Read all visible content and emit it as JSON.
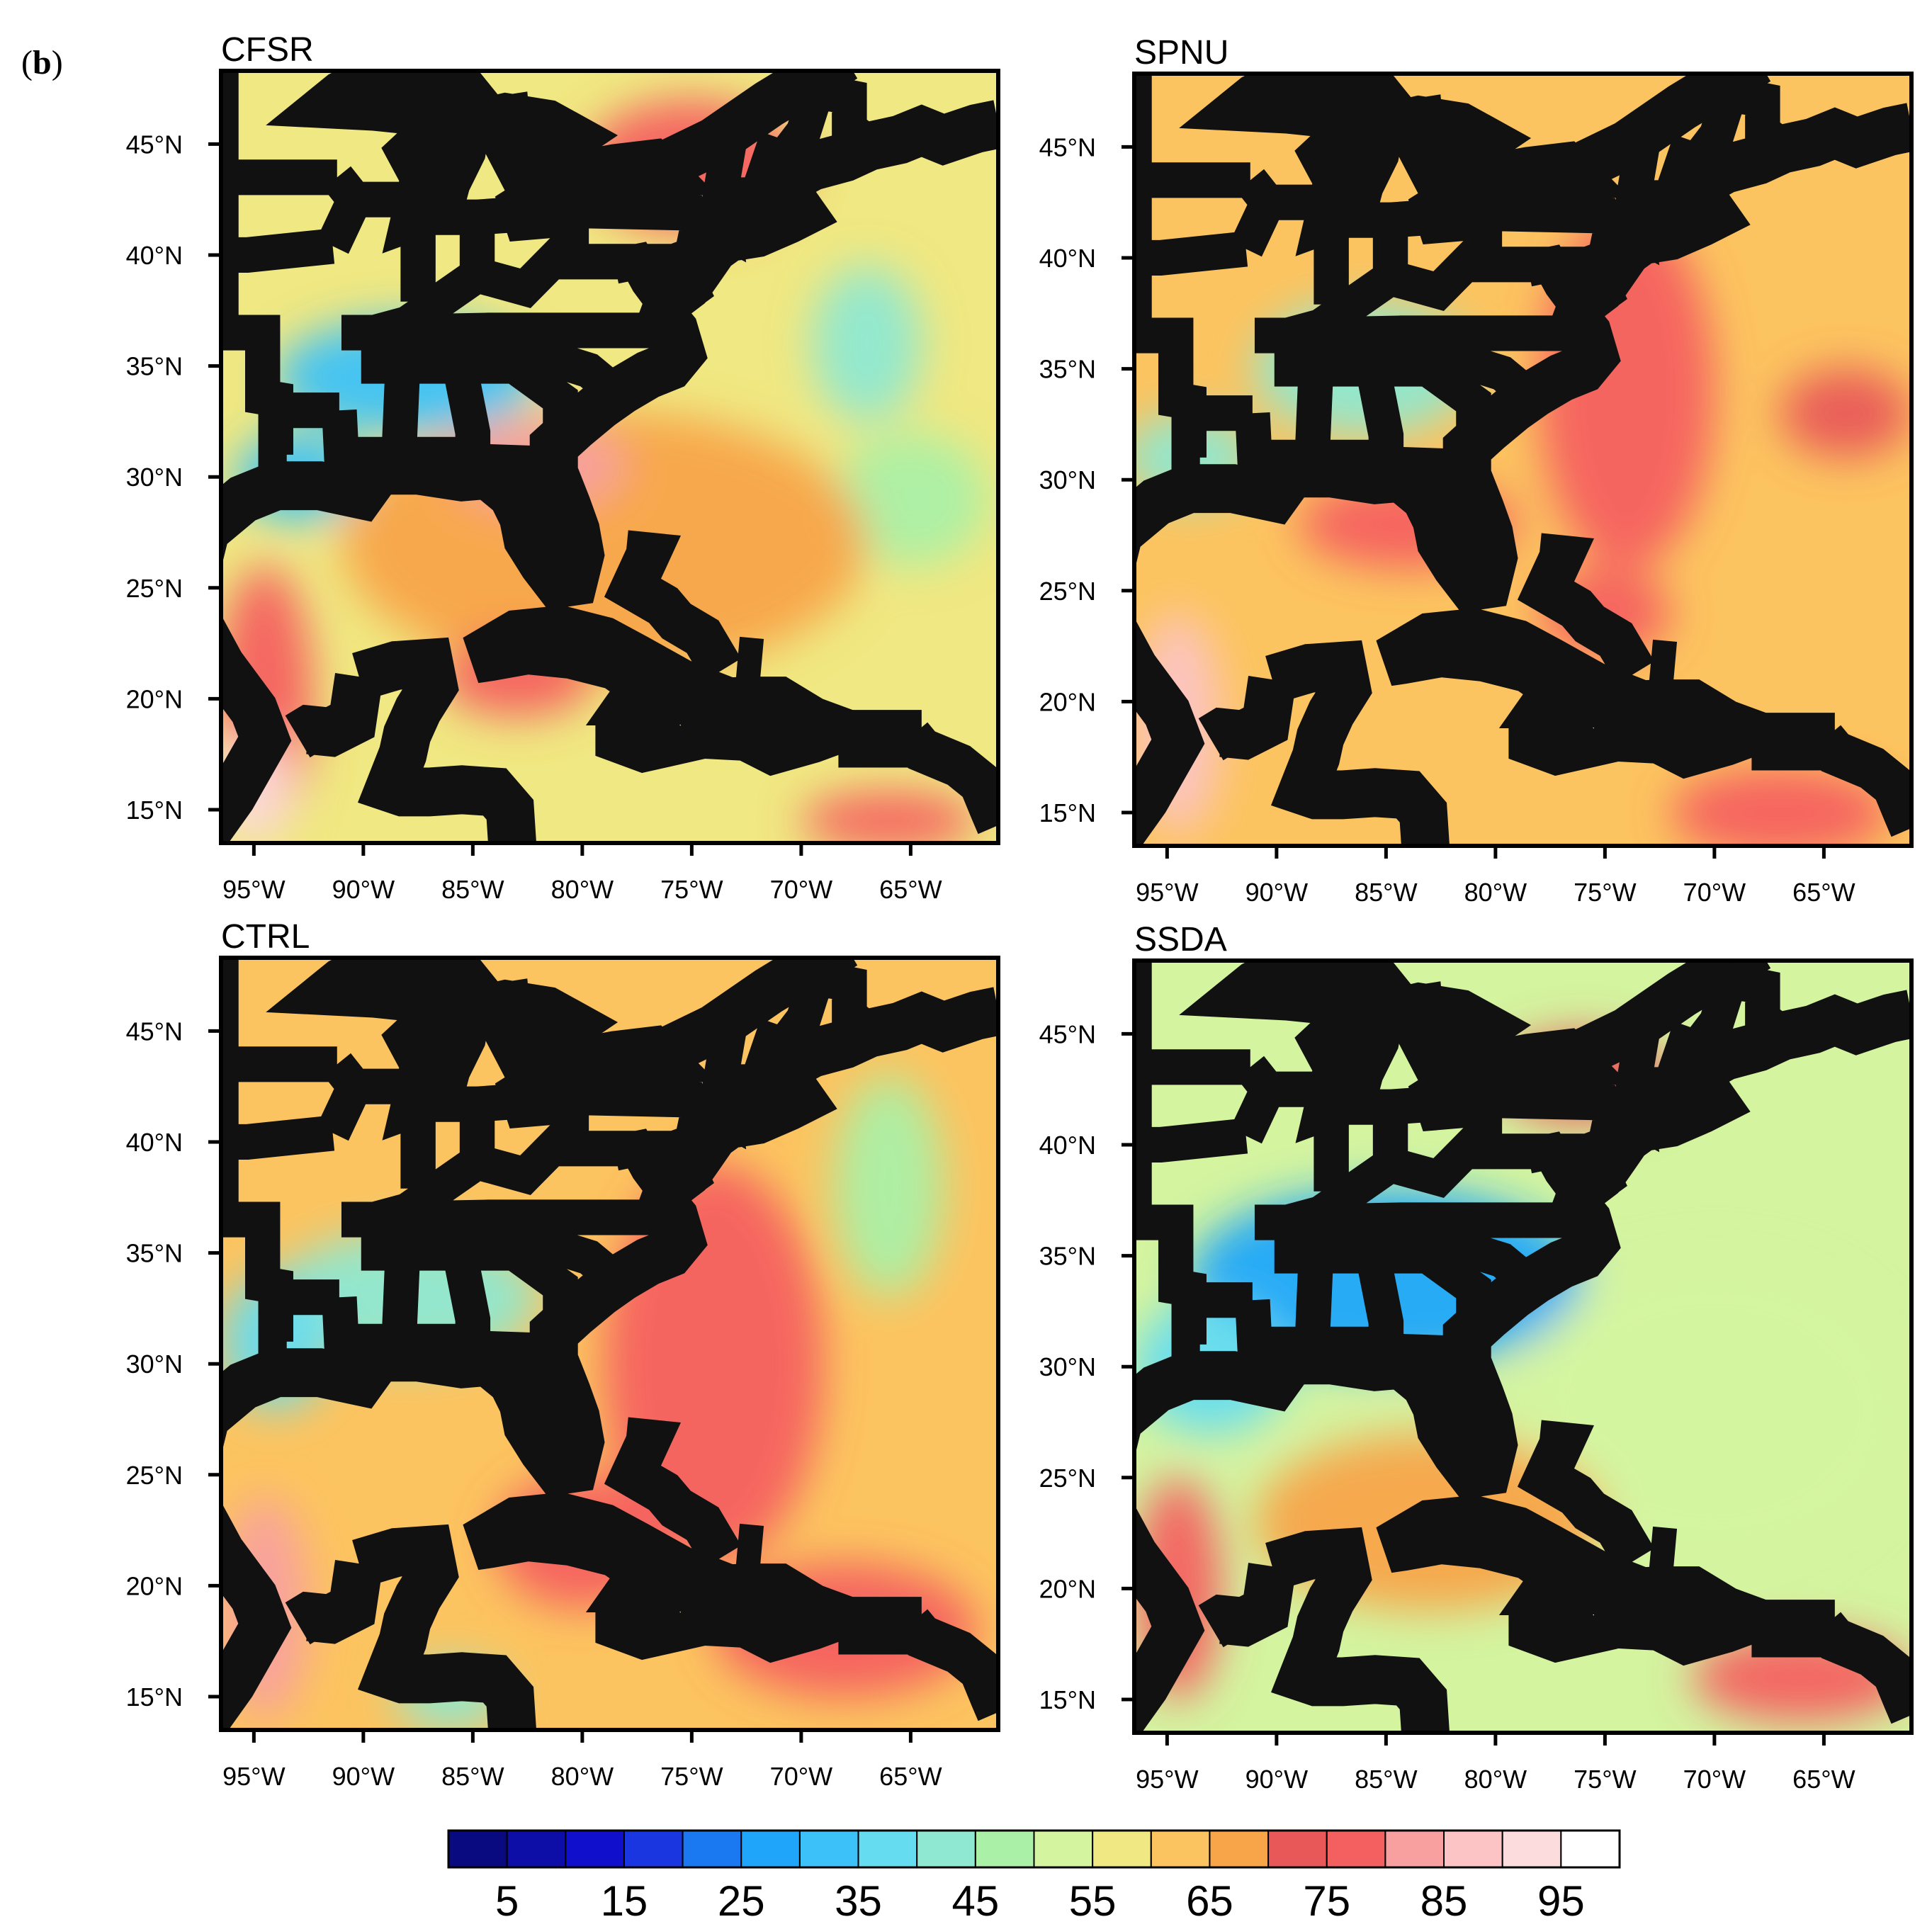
{
  "figure": {
    "panel_label_open": "(",
    "panel_label_letter": "b",
    "panel_label_close": ")"
  },
  "map_extent": {
    "lon_min": -96.5,
    "lon_max": -61,
    "lat_min": 13.5,
    "lat_max": 48.3
  },
  "lon_ticks": [
    {
      "value": -95,
      "label": "95°W"
    },
    {
      "value": -90,
      "label": "90°W"
    },
    {
      "value": -85,
      "label": "85°W"
    },
    {
      "value": -80,
      "label": "80°W"
    },
    {
      "value": -75,
      "label": "75°W"
    },
    {
      "value": -70,
      "label": "70°W"
    },
    {
      "value": -65,
      "label": "65°W"
    }
  ],
  "lat_ticks": [
    {
      "value": 15,
      "label": "15°N"
    },
    {
      "value": 20,
      "label": "20°N"
    },
    {
      "value": 25,
      "label": "25°N"
    },
    {
      "value": 30,
      "label": "30°N"
    },
    {
      "value": 35,
      "label": "35°N"
    },
    {
      "value": 40,
      "label": "40°N"
    },
    {
      "value": 45,
      "label": "45°N"
    }
  ],
  "panels": [
    {
      "id": "cfsr",
      "title": "CFSR",
      "background_level": 55,
      "blobs": [
        {
          "lon": -88,
          "lat": 34.5,
          "rx": 6,
          "ry": 2.6,
          "level": 30
        },
        {
          "lon": -93,
          "lat": 30,
          "rx": 2.8,
          "ry": 2,
          "level": 30
        },
        {
          "lon": -67,
          "lat": 36,
          "rx": 2.5,
          "ry": 3.5,
          "level": 40
        },
        {
          "lon": -65,
          "lat": 29,
          "rx": 3.5,
          "ry": 3,
          "level": 45
        },
        {
          "lon": -79,
          "lat": 27,
          "rx": 12,
          "ry": 6,
          "level": 65
        },
        {
          "lon": -75,
          "lat": 44,
          "rx": 5,
          "ry": 3,
          "level": 75
        },
        {
          "lon": -82,
          "lat": 30.5,
          "rx": 4,
          "ry": 2,
          "level": 80
        },
        {
          "lon": -94.5,
          "lat": 20,
          "rx": 2.2,
          "ry": 6,
          "level": 75
        },
        {
          "lon": -95,
          "lat": 16,
          "rx": 1.8,
          "ry": 2.5,
          "level": 90
        },
        {
          "lon": -83,
          "lat": 21,
          "rx": 3.5,
          "ry": 1.8,
          "level": 75
        },
        {
          "lon": -66,
          "lat": 14.5,
          "rx": 4,
          "ry": 1.3,
          "level": 75
        }
      ]
    },
    {
      "id": "spnu",
      "title": "SPNU",
      "background_level": 60,
      "blobs": [
        {
          "lon": -86,
          "lat": 35,
          "rx": 5,
          "ry": 3,
          "level": 40
        },
        {
          "lon": -94,
          "lat": 31,
          "rx": 3,
          "ry": 2,
          "level": 40
        },
        {
          "lon": -74,
          "lat": 34,
          "rx": 4,
          "ry": 8,
          "level": 75
        },
        {
          "lon": -84,
          "lat": 28,
          "rx": 5,
          "ry": 2,
          "level": 75
        },
        {
          "lon": -75,
          "lat": 24,
          "rx": 3,
          "ry": 2,
          "level": 75
        },
        {
          "lon": -94.5,
          "lat": 19,
          "rx": 2,
          "ry": 5,
          "level": 85
        },
        {
          "lon": -67,
          "lat": 15,
          "rx": 5,
          "ry": 2,
          "level": 75
        },
        {
          "lon": -64,
          "lat": 33,
          "rx": 3,
          "ry": 2,
          "level": 70
        }
      ]
    },
    {
      "id": "ctrl",
      "title": "CTRL",
      "background_level": 60,
      "blobs": [
        {
          "lon": -88,
          "lat": 33,
          "rx": 6,
          "ry": 3,
          "level": 40
        },
        {
          "lon": -94,
          "lat": 31,
          "rx": 2.5,
          "ry": 3,
          "level": 35
        },
        {
          "lon": -66,
          "lat": 38,
          "rx": 2.5,
          "ry": 5,
          "level": 45
        },
        {
          "lon": -74,
          "lat": 30,
          "rx": 5,
          "ry": 9,
          "level": 75
        },
        {
          "lon": -80,
          "lat": 22,
          "rx": 4,
          "ry": 3,
          "level": 75
        },
        {
          "lon": -68,
          "lat": 18,
          "rx": 6,
          "ry": 3,
          "level": 75
        },
        {
          "lon": -94.5,
          "lat": 19,
          "rx": 2,
          "ry": 5,
          "level": 80
        },
        {
          "lon": -86,
          "lat": 15,
          "rx": 2.5,
          "ry": 1.5,
          "level": 40
        }
      ]
    },
    {
      "id": "ssda",
      "title": "SSDA",
      "background_level": 52,
      "blobs": [
        {
          "lon": -85,
          "lat": 34,
          "rx": 9,
          "ry": 4,
          "level": 25
        },
        {
          "lon": -93,
          "lat": 30,
          "rx": 3.5,
          "ry": 3,
          "level": 35
        },
        {
          "lon": -70,
          "lat": 28,
          "rx": 9,
          "ry": 7,
          "level": 50
        },
        {
          "lon": -83,
          "lat": 23,
          "rx": 8,
          "ry": 4,
          "level": 65
        },
        {
          "lon": -94.5,
          "lat": 20,
          "rx": 2,
          "ry": 5,
          "level": 75
        },
        {
          "lon": -66,
          "lat": 16,
          "rx": 5,
          "ry": 2,
          "level": 75
        },
        {
          "lon": -76,
          "lat": 43,
          "rx": 4,
          "ry": 2,
          "level": 70
        }
      ]
    }
  ],
  "colorbar": {
    "colors": [
      "#0a0a80",
      "#0d0da8",
      "#1010cc",
      "#1a36e0",
      "#1a78f0",
      "#1fa6fa",
      "#3cc2f8",
      "#66dcf0",
      "#8ee8d2",
      "#aaf0a6",
      "#d4f4a0",
      "#f0e882",
      "#fcc460",
      "#f8a448",
      "#e85858",
      "#f46060",
      "#f8a0a0",
      "#fcc4c4",
      "#fcdcdc",
      "#ffffff"
    ],
    "label_values": [
      "5",
      "15",
      "25",
      "35",
      "45",
      "55",
      "65",
      "75",
      "85",
      "95"
    ]
  }
}
